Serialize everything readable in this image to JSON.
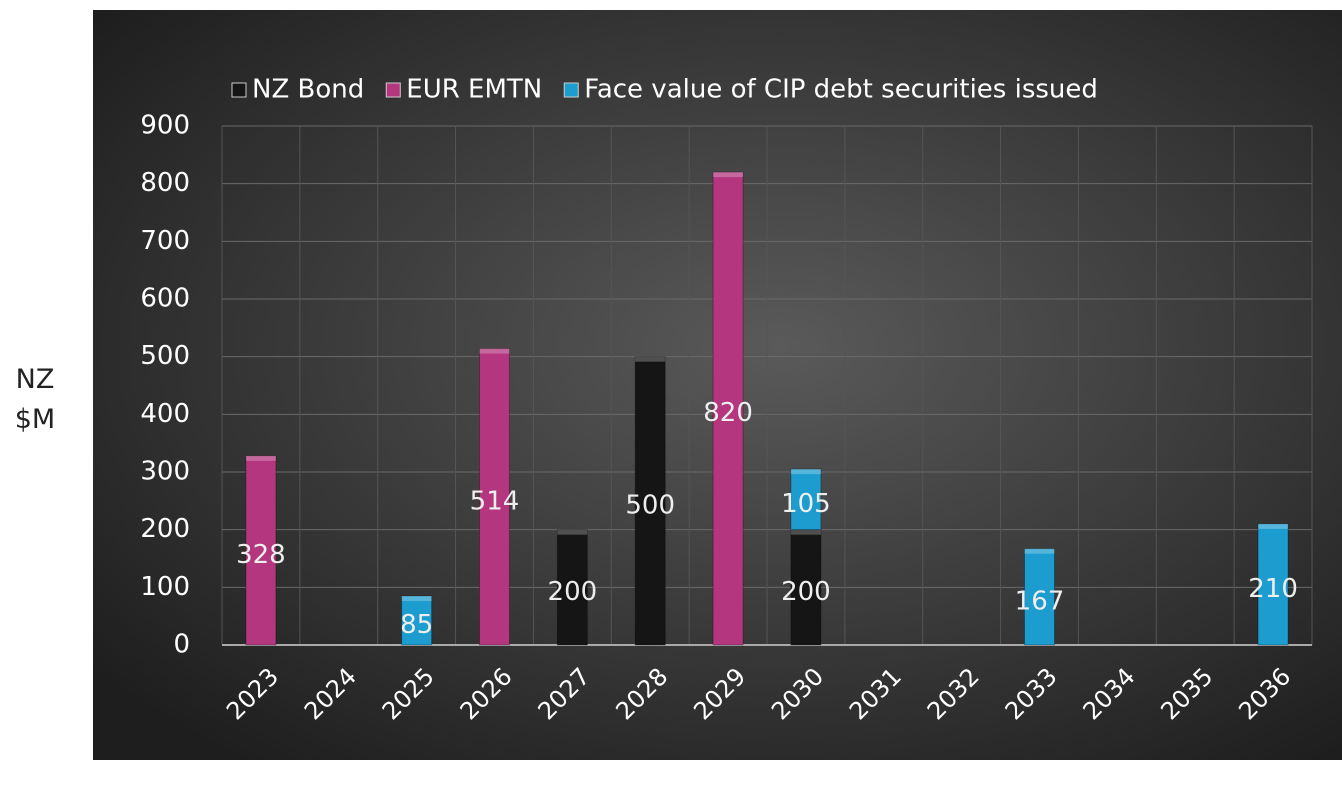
{
  "chart_data": {
    "type": "bar",
    "stacked": true,
    "y_label": "NZ $M",
    "categories": [
      "2023",
      "2024",
      "2025",
      "2026",
      "2027",
      "2028",
      "2029",
      "2030",
      "2031",
      "2032",
      "2033",
      "2034",
      "2035",
      "2036"
    ],
    "series": [
      {
        "name": "NZ Bond",
        "color": "#151515",
        "values": [
          null,
          null,
          null,
          null,
          200,
          500,
          null,
          200,
          null,
          null,
          null,
          null,
          null,
          null
        ]
      },
      {
        "name": "EUR EMTN",
        "color": "#b3367f",
        "values": [
          328,
          null,
          null,
          514,
          null,
          null,
          820,
          null,
          null,
          null,
          null,
          null,
          null,
          null
        ]
      },
      {
        "name": "Face value of CIP debt securities issued",
        "color": "#1c9ccf",
        "values": [
          null,
          null,
          85,
          null,
          null,
          null,
          null,
          105,
          null,
          null,
          167,
          null,
          null,
          210
        ]
      }
    ],
    "ylim": [
      0,
      900
    ],
    "yticks": [
      0,
      100,
      200,
      300,
      400,
      500,
      600,
      700,
      800,
      900
    ],
    "grid": true,
    "legend": "top"
  }
}
